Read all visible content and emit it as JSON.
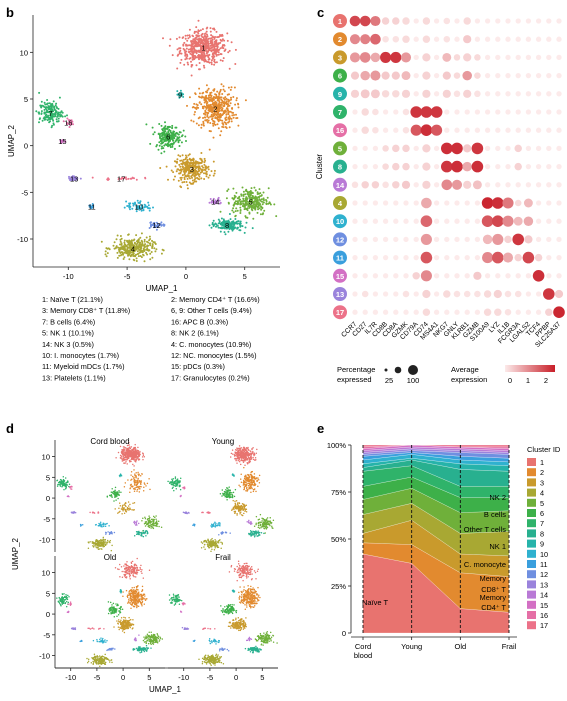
{
  "panels": {
    "b": {
      "letter": "b",
      "xlabel": "UMAP_1",
      "ylabel": "UMAP_2",
      "xticks": [
        "-10",
        "-5",
        "0",
        "5"
      ],
      "yticks": [
        "10",
        "5",
        "0",
        "-5",
        "-10"
      ],
      "legend": [
        "1: Naïve T (21.1%)",
        "2: Memory CD4⁺ T (16.6%)",
        "3: Memory CD8⁺ T (11.8%)",
        "6, 9: Other T cells (9.4%)",
        "7: B cells (6.4%)",
        "16: APC B (0.3%)",
        "5: NK 1 (10.1%)",
        "8: NK 2 (6.1%)",
        "14: NK 3 (0.5%)",
        "4: C. monocytes (10.9%)",
        "10: I. monocytes (1.7%)",
        "12: NC. monocytes (1.5%)",
        "11: Myeloid mDCs (1.7%)",
        "15: pDCs (0.3%)",
        "13: Platelets (1.1%)",
        "17: Granulocytes (0.2%)"
      ]
    },
    "c": {
      "letter": "c",
      "ylabel": "Cluster",
      "size_legend_title": "Percentage expressed",
      "size_ticks": [
        "25",
        "100"
      ],
      "color_legend_title": "Average expression",
      "color_ticks": [
        "0",
        "1",
        "2"
      ]
    },
    "d": {
      "letter": "d",
      "xlabel": "UMAP_1",
      "ylabel": "UMAP_2",
      "groups": [
        "Cord blood",
        "Young",
        "Old",
        "Frail"
      ],
      "xticks": [
        "-10",
        "-5",
        "0",
        "5"
      ],
      "yticks": [
        "10",
        "5",
        "0",
        "-5",
        "-10"
      ]
    },
    "e": {
      "letter": "e",
      "legend_title": "Cluster ID",
      "yticks": [
        "100%",
        "75%",
        "50%",
        "25%",
        "0"
      ],
      "annotations": [
        "NK 2",
        "B cells",
        "Other T cells",
        "NK 1",
        "C. monocyte",
        "Memory CD8⁺ T",
        "Memory CD4⁺ T",
        "Naïve T"
      ]
    }
  },
  "colors": {
    "1": "#e8736f",
    "2": "#e28a2f",
    "3": "#c99a2c",
    "4": "#a8a833",
    "5": "#6fb03a",
    "6": "#3db049",
    "7": "#2fb36a",
    "8": "#28b08f",
    "9": "#26b3aa",
    "10": "#2fb1cf",
    "11": "#3a9fdd",
    "12": "#6f8fe0",
    "13": "#9a83dc",
    "14": "#b97ad6",
    "15": "#d370c4",
    "16": "#e56fa6",
    "17": "#ec7289"
  },
  "chart_data": [
    {
      "type": "scatter",
      "panel": "b",
      "xlabel": "UMAP_1",
      "ylabel": "UMAP_2",
      "xlim": [
        -13,
        8
      ],
      "ylim": [
        -13,
        14
      ],
      "cluster_centers": [
        {
          "id": "1",
          "x": 1.5,
          "y": 10.5
        },
        {
          "id": "2",
          "x": 2.5,
          "y": 4.0
        },
        {
          "id": "3",
          "x": 0.5,
          "y": -2.5
        },
        {
          "id": "4",
          "x": -4.5,
          "y": -11.0
        },
        {
          "id": "5",
          "x": 5.5,
          "y": -6.0
        },
        {
          "id": "6",
          "x": -1.5,
          "y": 1.0
        },
        {
          "id": "7",
          "x": -11.5,
          "y": 3.5
        },
        {
          "id": "8",
          "x": 3.5,
          "y": -8.5
        },
        {
          "id": "9",
          "x": -0.5,
          "y": 5.5
        },
        {
          "id": "10",
          "x": -4.0,
          "y": -6.5
        },
        {
          "id": "11",
          "x": -8.0,
          "y": -6.5
        },
        {
          "id": "12",
          "x": -2.5,
          "y": -8.5
        },
        {
          "id": "13",
          "x": -9.5,
          "y": -3.5
        },
        {
          "id": "14",
          "x": 2.5,
          "y": -6.0
        },
        {
          "id": "15",
          "x": -10.5,
          "y": 0.5
        },
        {
          "id": "16",
          "x": -10.0,
          "y": 2.5
        },
        {
          "id": "17",
          "x": -5.5,
          "y": -3.5
        }
      ]
    },
    {
      "type": "heatmap",
      "panel": "c",
      "clusters": [
        "1",
        "2",
        "3",
        "6",
        "9",
        "7",
        "16",
        "5",
        "8",
        "14",
        "4",
        "10",
        "12",
        "11",
        "15",
        "13",
        "17"
      ],
      "genes": [
        "CCR7",
        "CD27",
        "IL7R",
        "CD8B",
        "CD8A",
        "GZMK",
        "CD79A",
        "CD74",
        "MS4A1",
        "NKG7",
        "GNLY",
        "KLRB1",
        "GZMB",
        "S100A9",
        "LYZ",
        "IL1B",
        "FCGR3A",
        "LGALS2",
        "TCF4",
        "PPBP",
        "SLC25A37"
      ],
      "pct_expressed": [
        [
          80,
          80,
          70,
          30,
          30,
          30,
          10,
          30,
          10,
          20,
          10,
          30,
          10,
          10,
          10,
          10,
          10,
          10,
          10,
          10,
          10
        ],
        [
          70,
          70,
          80,
          20,
          20,
          30,
          10,
          30,
          10,
          20,
          10,
          40,
          10,
          10,
          10,
          10,
          10,
          10,
          10,
          10,
          10
        ],
        [
          70,
          80,
          60,
          90,
          90,
          70,
          10,
          40,
          10,
          50,
          20,
          40,
          20,
          10,
          10,
          10,
          10,
          10,
          10,
          10,
          10
        ],
        [
          40,
          60,
          70,
          40,
          40,
          50,
          10,
          40,
          10,
          40,
          20,
          60,
          20,
          10,
          10,
          10,
          10,
          10,
          10,
          10,
          10
        ],
        [
          40,
          50,
          50,
          30,
          30,
          40,
          10,
          40,
          10,
          40,
          20,
          40,
          20,
          10,
          10,
          10,
          10,
          10,
          10,
          10,
          10
        ],
        [
          10,
          30,
          20,
          10,
          10,
          20,
          100,
          100,
          100,
          10,
          10,
          10,
          10,
          10,
          10,
          10,
          10,
          10,
          10,
          10,
          10
        ],
        [
          10,
          30,
          20,
          10,
          10,
          20,
          90,
          100,
          90,
          10,
          10,
          10,
          10,
          10,
          10,
          10,
          10,
          10,
          10,
          10,
          10
        ],
        [
          10,
          10,
          10,
          20,
          30,
          30,
          10,
          40,
          10,
          100,
          100,
          40,
          100,
          10,
          10,
          10,
          30,
          10,
          10,
          10,
          10
        ],
        [
          10,
          10,
          10,
          20,
          30,
          30,
          10,
          40,
          10,
          100,
          100,
          60,
          100,
          10,
          10,
          10,
          30,
          10,
          10,
          10,
          10
        ],
        [
          20,
          30,
          30,
          20,
          30,
          40,
          10,
          40,
          10,
          80,
          70,
          40,
          50,
          10,
          10,
          10,
          10,
          10,
          10,
          10,
          10
        ],
        [
          10,
          10,
          10,
          10,
          10,
          10,
          10,
          80,
          10,
          10,
          10,
          10,
          10,
          100,
          100,
          90,
          20,
          50,
          10,
          10,
          10
        ],
        [
          10,
          10,
          10,
          10,
          10,
          10,
          10,
          100,
          10,
          10,
          10,
          10,
          10,
          100,
          100,
          90,
          50,
          60,
          10,
          10,
          10
        ],
        [
          10,
          10,
          10,
          10,
          10,
          10,
          10,
          90,
          10,
          10,
          10,
          10,
          10,
          60,
          90,
          30,
          100,
          40,
          10,
          10,
          10
        ],
        [
          10,
          10,
          10,
          10,
          10,
          10,
          10,
          100,
          10,
          10,
          10,
          10,
          10,
          90,
          100,
          70,
          30,
          100,
          30,
          10,
          10
        ],
        [
          10,
          10,
          10,
          10,
          10,
          10,
          30,
          90,
          10,
          10,
          10,
          10,
          40,
          10,
          10,
          10,
          10,
          10,
          100,
          10,
          10
        ],
        [
          10,
          20,
          10,
          10,
          10,
          20,
          10,
          40,
          10,
          30,
          20,
          20,
          20,
          30,
          40,
          20,
          20,
          10,
          10,
          100,
          40
        ],
        [
          10,
          10,
          10,
          10,
          10,
          10,
          10,
          30,
          10,
          10,
          10,
          10,
          10,
          30,
          30,
          20,
          10,
          10,
          10,
          30,
          100
        ]
      ],
      "avg_expression": [
        [
          2.0,
          2.0,
          1.4,
          0.3,
          0.3,
          0.2,
          0,
          0.2,
          0,
          0.1,
          0,
          0.2,
          0,
          0,
          0,
          0,
          0,
          0,
          0,
          0,
          0
        ],
        [
          1.2,
          1.3,
          1.6,
          0.1,
          0.1,
          0.2,
          0,
          0.2,
          0,
          0.1,
          0,
          0.4,
          0,
          0,
          0,
          0,
          0,
          0,
          0,
          0,
          0
        ],
        [
          1.0,
          1.2,
          0.8,
          2.2,
          2.2,
          1.0,
          0,
          0.3,
          0,
          0.6,
          0.2,
          0.3,
          0.2,
          0,
          0,
          0,
          0,
          0,
          0,
          0,
          0
        ],
        [
          0.4,
          0.8,
          1.0,
          0.4,
          0.4,
          0.6,
          0,
          0.3,
          0,
          0.4,
          0.2,
          1.0,
          0.2,
          0,
          0,
          0,
          0,
          0,
          0,
          0,
          0
        ],
        [
          0.3,
          0.4,
          0.4,
          0.2,
          0.2,
          0.3,
          0,
          0.3,
          0,
          0.3,
          0.1,
          0.3,
          0.1,
          0,
          0,
          0,
          0,
          0,
          0,
          0,
          0
        ],
        [
          0,
          0.2,
          0.1,
          0,
          0,
          0.1,
          2.2,
          2.2,
          2.2,
          0,
          0,
          0,
          0,
          0,
          0,
          0,
          0,
          0,
          0,
          0,
          0
        ],
        [
          0,
          0.2,
          0.1,
          0,
          0,
          0.1,
          1.8,
          2.3,
          1.8,
          0,
          0,
          0,
          0,
          0,
          0,
          0,
          0,
          0,
          0,
          0,
          0
        ],
        [
          0,
          0,
          0,
          0.2,
          0.3,
          0.3,
          0,
          0.3,
          0,
          2.3,
          2.3,
          0.4,
          2.2,
          0,
          0,
          0,
          0.3,
          0,
          0,
          0,
          0
        ],
        [
          0,
          0,
          0,
          0.2,
          0.3,
          0.3,
          0,
          0.3,
          0,
          2.2,
          2.3,
          0.8,
          2.3,
          0,
          0,
          0,
          0.3,
          0,
          0,
          0,
          0
        ],
        [
          0.1,
          0.3,
          0.3,
          0.1,
          0.3,
          0.4,
          0,
          0.3,
          0,
          1.2,
          1.0,
          0.3,
          0.5,
          0,
          0,
          0,
          0,
          0,
          0,
          0,
          0
        ],
        [
          0,
          0,
          0,
          0,
          0,
          0,
          0,
          0.8,
          0,
          0,
          0,
          0,
          0,
          2.4,
          2.3,
          1.4,
          0.2,
          0.6,
          0,
          0,
          0
        ],
        [
          0,
          0,
          0,
          0,
          0,
          0,
          0,
          1.6,
          0,
          0,
          0,
          0,
          0,
          1.8,
          2.0,
          1.2,
          0.6,
          0.8,
          0,
          0,
          0
        ],
        [
          0,
          0,
          0,
          0,
          0,
          0,
          0,
          1.0,
          0,
          0,
          0,
          0,
          0,
          0.6,
          1.0,
          0.3,
          2.2,
          0.4,
          0,
          0,
          0
        ],
        [
          0,
          0,
          0,
          0,
          0,
          0,
          0,
          1.8,
          0,
          0,
          0,
          0,
          0,
          1.2,
          1.8,
          0.8,
          0.3,
          2.0,
          0.3,
          0,
          0
        ],
        [
          0,
          0,
          0,
          0,
          0,
          0,
          0.3,
          1.2,
          0,
          0,
          0,
          0,
          0.4,
          0,
          0,
          0,
          0,
          0,
          2.3,
          0,
          0
        ],
        [
          0,
          0.1,
          0,
          0,
          0,
          0.1,
          0,
          0.3,
          0,
          0.2,
          0.1,
          0.1,
          0.1,
          0.2,
          0.3,
          0.1,
          0.1,
          0,
          0,
          2.2,
          0.4
        ],
        [
          0,
          0,
          0,
          0,
          0,
          0,
          0,
          0.2,
          0,
          0,
          0,
          0,
          0,
          0.2,
          0.2,
          0.1,
          0,
          0,
          0,
          0.3,
          2.4
        ]
      ],
      "size_legend": [
        25,
        100
      ],
      "color_range": [
        0,
        2.5
      ]
    },
    {
      "type": "scatter",
      "panel": "d",
      "groups": [
        "Cord blood",
        "Young",
        "Old",
        "Frail"
      ],
      "xlim": [
        -13,
        8
      ],
      "ylim": [
        -13,
        14
      ],
      "relative_density": {
        "Cord blood": {
          "1": 1.6,
          "2": 0.5,
          "3": 0.4,
          "4": 1.0,
          "5": 0.8,
          "6": 0.7,
          "7": 1.0,
          "8": 0.6
        },
        "Young": {
          "1": 1.3,
          "2": 0.9,
          "3": 0.8,
          "4": 1.0,
          "5": 0.9,
          "6": 0.9,
          "7": 1.0,
          "8": 0.8
        },
        "Old": {
          "1": 0.7,
          "2": 1.2,
          "3": 1.1,
          "4": 1.0,
          "5": 1.1,
          "6": 1.0,
          "7": 0.9,
          "8": 1.0
        },
        "Frail": {
          "1": 0.6,
          "2": 1.2,
          "3": 1.1,
          "4": 1.2,
          "5": 1.0,
          "6": 1.0,
          "7": 0.8,
          "8": 1.1
        }
      }
    },
    {
      "type": "area",
      "panel": "e",
      "categories": [
        "Cord blood",
        "Young",
        "Old",
        "Frail"
      ],
      "ylim": [
        0,
        100
      ],
      "series": [
        {
          "name": "1",
          "values": [
            42,
            37,
            13,
            11
          ]
        },
        {
          "name": "2",
          "values": [
            6,
            10,
            19,
            19
          ]
        },
        {
          "name": "3",
          "values": [
            5,
            13,
            10,
            11
          ]
        },
        {
          "name": "4",
          "values": [
            10,
            9,
            11,
            13
          ]
        },
        {
          "name": "5",
          "values": [
            8,
            8,
            11,
            11
          ]
        },
        {
          "name": "6",
          "values": [
            7,
            6,
            8,
            7
          ]
        },
        {
          "name": "7",
          "values": [
            8,
            6,
            6,
            6
          ]
        },
        {
          "name": "8",
          "values": [
            2,
            3,
            9,
            8
          ]
        },
        {
          "name": "9",
          "values": [
            2,
            1,
            3,
            3
          ]
        },
        {
          "name": "10",
          "values": [
            2,
            2,
            2,
            2
          ]
        },
        {
          "name": "11",
          "values": [
            2,
            1,
            2,
            2
          ]
        },
        {
          "name": "12",
          "values": [
            1,
            1,
            2,
            2
          ]
        },
        {
          "name": "13",
          "values": [
            1,
            1,
            1,
            1
          ]
        },
        {
          "name": "14",
          "values": [
            1,
            1,
            1,
            1
          ]
        },
        {
          "name": "15",
          "values": [
            1,
            1,
            1,
            1
          ]
        },
        {
          "name": "16",
          "values": [
            1,
            0,
            0,
            1
          ]
        },
        {
          "name": "17",
          "values": [
            1,
            0,
            1,
            1
          ]
        }
      ]
    }
  ]
}
